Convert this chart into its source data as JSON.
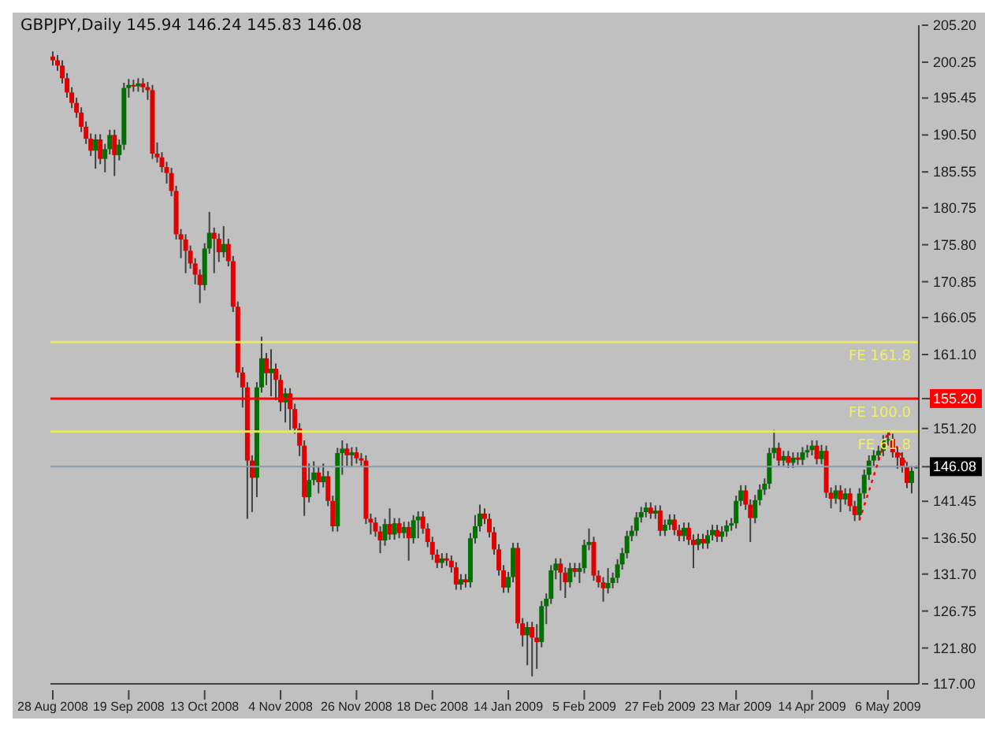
{
  "chart_data": {
    "type": "candlestick",
    "title": "GBPJPY,Daily  145.94 146.24 145.83 146.08",
    "categories": [
      "28 Aug 2008",
      null,
      null,
      null,
      null,
      null,
      null,
      null,
      null,
      null,
      null,
      null,
      null,
      null,
      null,
      null,
      "19 Sep 2008",
      null,
      null,
      null,
      null,
      null,
      null,
      null,
      null,
      null,
      null,
      null,
      null,
      null,
      null,
      null,
      "13 Oct 2008",
      null,
      null,
      null,
      null,
      null,
      null,
      null,
      null,
      null,
      null,
      null,
      null,
      null,
      null,
      null,
      "4 Nov 2008",
      null,
      null,
      null,
      null,
      null,
      null,
      null,
      null,
      null,
      null,
      null,
      null,
      null,
      null,
      null,
      "26 Nov 2008",
      null,
      null,
      null,
      null,
      null,
      null,
      null,
      null,
      null,
      null,
      null,
      null,
      null,
      null,
      null,
      "18 Dec 2008",
      null,
      null,
      null,
      null,
      null,
      null,
      null,
      null,
      null,
      null,
      null,
      null,
      null,
      null,
      null,
      "14 Jan 2009",
      null,
      null,
      null,
      null,
      null,
      null,
      null,
      null,
      null,
      null,
      null,
      null,
      null,
      null,
      null,
      "5 Feb 2009",
      null,
      null,
      null,
      null,
      null,
      null,
      null,
      null,
      null,
      null,
      null,
      null,
      null,
      null,
      null,
      "27 Feb 2009",
      null,
      null,
      null,
      null,
      null,
      null,
      null,
      null,
      null,
      null,
      null,
      null,
      null,
      null,
      null,
      "23 Mar 2009",
      null,
      null,
      null,
      null,
      null,
      null,
      null,
      null,
      null,
      null,
      null,
      null,
      null,
      null,
      null,
      "14 Apr 2009",
      null,
      null,
      null,
      null,
      null,
      null,
      null,
      null,
      null,
      null,
      null,
      null,
      null,
      null,
      null,
      "6 May 2009",
      null,
      null,
      null,
      null,
      null,
      null
    ],
    "ohlc": [
      [
        201.0,
        201.7,
        199.8,
        200.5
      ],
      [
        200.5,
        201.2,
        199.1,
        199.8
      ],
      [
        199.8,
        200.5,
        197.4,
        198.1
      ],
      [
        198.1,
        198.8,
        195.5,
        196.2
      ],
      [
        196.2,
        196.9,
        194.1,
        194.8
      ],
      [
        194.8,
        195.5,
        192.8,
        193.5
      ],
      [
        193.5,
        194.2,
        190.9,
        191.6
      ],
      [
        191.6,
        192.3,
        189.3,
        190.0
      ],
      [
        190.0,
        190.7,
        187.7,
        188.4
      ],
      [
        188.4,
        190.6,
        186.0,
        189.9
      ],
      [
        189.9,
        190.6,
        186.6,
        187.3
      ],
      [
        187.3,
        189.3,
        185.5,
        188.6
      ],
      [
        188.6,
        191.2,
        187.9,
        190.5
      ],
      [
        190.5,
        191.2,
        185.0,
        187.8
      ],
      [
        187.8,
        189.9,
        187.1,
        189.2
      ],
      [
        189.2,
        197.5,
        188.5,
        196.8
      ],
      [
        196.8,
        198.0,
        195.5,
        197.2
      ],
      [
        197.2,
        197.9,
        196.3,
        197.0
      ],
      [
        197.0,
        198.1,
        196.3,
        197.4
      ],
      [
        197.4,
        198.1,
        196.2,
        196.9
      ],
      [
        196.9,
        197.6,
        195.2,
        196.5
      ],
      [
        196.5,
        197.2,
        187.3,
        188.0
      ],
      [
        188.0,
        189.5,
        186.8,
        187.5
      ],
      [
        187.5,
        188.2,
        185.5,
        186.2
      ],
      [
        186.2,
        186.9,
        184.0,
        185.4
      ],
      [
        185.4,
        186.1,
        182.3,
        183.0
      ],
      [
        183.0,
        183.7,
        176.5,
        177.2
      ],
      [
        177.2,
        177.9,
        174.0,
        176.5
      ],
      [
        176.5,
        177.2,
        172.0,
        175.0
      ],
      [
        175.0,
        175.7,
        172.6,
        173.3
      ],
      [
        173.3,
        174.0,
        170.5,
        171.8
      ],
      [
        171.8,
        172.5,
        168.0,
        170.4
      ],
      [
        170.4,
        176.0,
        169.7,
        175.3
      ],
      [
        175.3,
        180.2,
        174.6,
        177.4
      ],
      [
        177.4,
        178.1,
        172.0,
        176.6
      ],
      [
        176.6,
        177.3,
        173.5,
        174.8
      ],
      [
        174.8,
        178.3,
        174.1,
        175.9
      ],
      [
        175.9,
        176.6,
        172.9,
        173.6
      ],
      [
        173.6,
        174.3,
        166.8,
        167.5
      ],
      [
        167.5,
        168.2,
        158.0,
        158.7
      ],
      [
        158.7,
        159.4,
        154.0,
        156.7
      ],
      [
        156.7,
        157.4,
        139.1,
        146.9
      ],
      [
        146.9,
        147.6,
        140.0,
        144.6
      ],
      [
        144.6,
        157.4,
        142.0,
        156.7
      ],
      [
        156.7,
        163.5,
        156.0,
        160.6
      ],
      [
        160.6,
        161.3,
        157.0,
        158.6
      ],
      [
        158.6,
        161.8,
        155.5,
        159.2
      ],
      [
        159.2,
        159.9,
        155.0,
        157.7
      ],
      [
        157.7,
        158.4,
        153.5,
        154.7
      ],
      [
        154.7,
        156.6,
        152.0,
        155.9
      ],
      [
        155.9,
        156.6,
        151.0,
        153.8
      ],
      [
        153.8,
        154.5,
        150.5,
        151.2
      ],
      [
        151.2,
        151.9,
        147.5,
        148.9
      ],
      [
        148.9,
        149.6,
        139.5,
        142.0
      ],
      [
        142.0,
        146.5,
        141.3,
        144.3
      ],
      [
        144.3,
        146.8,
        143.6,
        145.3
      ],
      [
        145.3,
        146.0,
        142.5,
        144.0
      ],
      [
        144.0,
        146.5,
        143.3,
        144.8
      ],
      [
        144.8,
        145.5,
        140.8,
        141.5
      ],
      [
        141.5,
        142.2,
        137.4,
        138.1
      ],
      [
        138.1,
        148.6,
        137.4,
        147.9
      ],
      [
        147.9,
        149.6,
        145.0,
        148.5
      ],
      [
        148.5,
        149.2,
        146.2,
        147.6
      ],
      [
        147.6,
        148.7,
        146.0,
        148.0
      ],
      [
        148.0,
        148.7,
        146.5,
        147.2
      ],
      [
        147.2,
        147.9,
        146.2,
        146.9
      ],
      [
        146.9,
        147.6,
        138.4,
        139.1
      ],
      [
        139.1,
        139.8,
        137.0,
        138.6
      ],
      [
        138.6,
        139.3,
        136.7,
        137.4
      ],
      [
        137.4,
        138.1,
        134.5,
        136.2
      ],
      [
        136.2,
        139.1,
        135.5,
        138.4
      ],
      [
        138.4,
        140.5,
        136.3,
        137.0
      ],
      [
        137.0,
        139.2,
        136.3,
        138.5
      ],
      [
        138.5,
        139.2,
        136.5,
        137.2
      ],
      [
        137.2,
        138.7,
        136.5,
        138.0
      ],
      [
        138.0,
        138.7,
        133.5,
        136.5
      ],
      [
        136.5,
        139.6,
        135.8,
        138.9
      ],
      [
        138.9,
        140.1,
        136.5,
        139.4
      ],
      [
        139.4,
        140.1,
        137.1,
        137.8
      ],
      [
        137.8,
        138.5,
        135.3,
        136.0
      ],
      [
        136.0,
        136.7,
        133.6,
        134.3
      ],
      [
        134.3,
        135.0,
        132.5,
        133.2
      ],
      [
        133.2,
        134.5,
        132.5,
        133.8
      ],
      [
        133.8,
        134.5,
        132.8,
        133.5
      ],
      [
        133.5,
        134.2,
        131.9,
        132.6
      ],
      [
        132.6,
        133.3,
        129.6,
        130.3
      ],
      [
        130.3,
        131.7,
        129.6,
        131.0
      ],
      [
        131.0,
        131.7,
        129.9,
        130.6
      ],
      [
        130.6,
        137.2,
        129.9,
        136.5
      ],
      [
        136.5,
        139.6,
        135.8,
        138.1
      ],
      [
        138.1,
        141.0,
        137.4,
        139.8
      ],
      [
        139.8,
        140.5,
        138.4,
        139.1
      ],
      [
        139.1,
        139.8,
        136.6,
        137.3
      ],
      [
        137.3,
        138.0,
        134.3,
        135.0
      ],
      [
        135.0,
        135.7,
        131.5,
        132.2
      ],
      [
        132.2,
        132.9,
        129.2,
        129.9
      ],
      [
        129.9,
        132.0,
        129.2,
        131.3
      ],
      [
        131.3,
        135.9,
        130.6,
        135.2
      ],
      [
        135.2,
        135.9,
        124.4,
        125.1
      ],
      [
        125.1,
        125.8,
        122.0,
        123.5
      ],
      [
        123.5,
        125.3,
        119.5,
        124.6
      ],
      [
        124.6,
        125.3,
        118.0,
        123.2
      ],
      [
        123.2,
        125.0,
        119.0,
        122.6
      ],
      [
        122.6,
        128.1,
        121.9,
        127.4
      ],
      [
        127.4,
        129.1,
        125.0,
        128.4
      ],
      [
        128.4,
        132.9,
        127.7,
        132.2
      ],
      [
        132.2,
        133.8,
        131.0,
        133.1
      ],
      [
        133.1,
        133.8,
        129.5,
        131.9
      ],
      [
        131.9,
        132.6,
        128.5,
        130.6
      ],
      [
        130.6,
        133.2,
        129.9,
        132.5
      ],
      [
        132.5,
        133.2,
        131.3,
        132.0
      ],
      [
        132.0,
        133.2,
        130.5,
        132.5
      ],
      [
        132.5,
        136.3,
        131.8,
        135.6
      ],
      [
        135.6,
        137.8,
        134.9,
        136.0
      ],
      [
        136.0,
        136.7,
        130.8,
        131.5
      ],
      [
        131.5,
        132.2,
        129.9,
        130.6
      ],
      [
        130.6,
        131.3,
        128.0,
        129.8
      ],
      [
        129.8,
        132.5,
        129.1,
        130.5
      ],
      [
        130.5,
        131.9,
        129.8,
        131.2
      ],
      [
        131.2,
        133.7,
        130.5,
        133.0
      ],
      [
        133.0,
        135.2,
        132.3,
        134.5
      ],
      [
        134.5,
        137.5,
        133.8,
        136.8
      ],
      [
        136.8,
        138.2,
        136.1,
        137.5
      ],
      [
        137.5,
        140.0,
        136.8,
        139.3
      ],
      [
        139.3,
        140.7,
        138.6,
        140.0
      ],
      [
        140.0,
        141.3,
        139.3,
        140.6
      ],
      [
        140.6,
        141.3,
        139.1,
        139.8
      ],
      [
        139.8,
        140.9,
        139.1,
        140.2
      ],
      [
        140.2,
        140.9,
        136.8,
        137.5
      ],
      [
        137.5,
        139.0,
        136.8,
        138.3
      ],
      [
        138.3,
        139.7,
        137.6,
        139.0
      ],
      [
        139.0,
        139.7,
        136.9,
        137.6
      ],
      [
        137.6,
        138.3,
        136.1,
        136.8
      ],
      [
        136.8,
        138.6,
        136.1,
        137.9
      ],
      [
        137.9,
        138.6,
        135.6,
        136.3
      ],
      [
        136.3,
        137.0,
        132.5,
        135.6
      ],
      [
        135.6,
        137.1,
        134.9,
        136.4
      ],
      [
        136.4,
        137.1,
        135.1,
        135.8
      ],
      [
        135.8,
        137.6,
        135.1,
        136.9
      ],
      [
        136.9,
        138.3,
        136.2,
        137.6
      ],
      [
        137.6,
        138.3,
        136.0,
        136.7
      ],
      [
        136.7,
        138.1,
        136.0,
        137.4
      ],
      [
        137.4,
        138.9,
        136.7,
        138.2
      ],
      [
        138.2,
        139.2,
        137.5,
        138.5
      ],
      [
        138.5,
        142.2,
        137.8,
        141.5
      ],
      [
        141.5,
        143.6,
        140.8,
        142.9
      ],
      [
        142.9,
        143.6,
        140.3,
        141.0
      ],
      [
        141.0,
        141.7,
        136.0,
        139.2
      ],
      [
        139.2,
        142.3,
        138.5,
        141.6
      ],
      [
        141.6,
        143.7,
        140.9,
        143.0
      ],
      [
        143.0,
        144.5,
        142.3,
        143.8
      ],
      [
        143.8,
        148.6,
        143.1,
        147.9
      ],
      [
        147.9,
        151.0,
        147.2,
        148.6
      ],
      [
        148.6,
        149.3,
        146.2,
        146.9
      ],
      [
        146.9,
        148.2,
        146.2,
        147.5
      ],
      [
        147.5,
        148.2,
        145.9,
        146.6
      ],
      [
        146.6,
        148.0,
        145.9,
        147.3
      ],
      [
        147.3,
        148.0,
        146.3,
        147.0
      ],
      [
        147.0,
        148.7,
        146.3,
        148.0
      ],
      [
        148.0,
        149.0,
        147.3,
        148.3
      ],
      [
        148.3,
        149.6,
        147.6,
        148.9
      ],
      [
        148.9,
        149.6,
        146.4,
        147.1
      ],
      [
        147.1,
        149.0,
        146.4,
        148.2
      ],
      [
        148.2,
        148.9,
        141.9,
        142.6
      ],
      [
        142.6,
        143.3,
        140.5,
        141.8
      ],
      [
        141.8,
        143.6,
        141.1,
        142.9
      ],
      [
        142.9,
        143.6,
        140.0,
        141.7
      ],
      [
        141.7,
        143.2,
        141.0,
        142.5
      ],
      [
        142.5,
        143.2,
        140.1,
        140.8
      ],
      [
        140.8,
        141.5,
        138.8,
        139.6
      ],
      [
        139.6,
        143.2,
        138.9,
        142.5
      ],
      [
        142.5,
        145.7,
        141.8,
        145.0
      ],
      [
        145.0,
        147.6,
        144.3,
        146.9
      ],
      [
        146.9,
        148.3,
        146.2,
        147.6
      ],
      [
        147.6,
        148.9,
        146.9,
        148.2
      ],
      [
        148.2,
        150.3,
        147.5,
        149.6
      ],
      [
        149.6,
        150.8,
        148.9,
        149.8
      ],
      [
        149.8,
        150.5,
        147.3,
        148.0
      ],
      [
        148.0,
        148.7,
        145.8,
        147.3
      ],
      [
        147.3,
        148.0,
        145.3,
        146.0
      ],
      [
        146.0,
        146.7,
        143.2,
        143.9
      ],
      [
        143.9,
        146.2,
        142.5,
        145.5
      ],
      [
        145.94,
        146.24,
        145.83,
        146.08
      ]
    ],
    "colors": [
      "#e00000",
      "#e00000",
      "#e00000",
      "#e00000",
      "#e00000",
      "#e00000",
      "#e00000",
      "#e00000",
      "#e00000",
      "#007000",
      "#e00000",
      "#007000",
      "#007000",
      "#e00000",
      "#007000",
      "#007000",
      "#007000",
      "#e00000",
      "#007000",
      "#e00000",
      "#e00000",
      "#e00000",
      "#e00000",
      "#e00000",
      "#e00000",
      "#e00000",
      "#e00000",
      "#e00000",
      "#e00000",
      "#e00000",
      "#e00000",
      "#e00000",
      "#007000",
      "#007000",
      "#e00000",
      "#e00000",
      "#007000",
      "#e00000",
      "#e00000",
      "#e00000",
      "#e00000",
      "#e00000",
      "#e00000",
      "#007000",
      "#007000",
      "#e00000",
      "#007000",
      "#e00000",
      "#e00000",
      "#007000",
      "#e00000",
      "#e00000",
      "#e00000",
      "#e00000",
      "#007000",
      "#007000",
      "#e00000",
      "#007000",
      "#e00000",
      "#e00000",
      "#007000",
      "#007000",
      "#e00000",
      "#007000",
      "#e00000",
      "#e00000",
      "#e00000",
      "#e00000",
      "#e00000",
      "#e00000",
      "#007000",
      "#e00000",
      "#007000",
      "#e00000",
      "#007000",
      "#e00000",
      "#007000",
      "#007000",
      "#e00000",
      "#e00000",
      "#e00000",
      "#e00000",
      "#007000",
      "#e00000",
      "#e00000",
      "#e00000",
      "#007000",
      "#e00000",
      "#007000",
      "#007000",
      "#007000",
      "#e00000",
      "#e00000",
      "#e00000",
      "#e00000",
      "#e00000",
      "#007000",
      "#007000",
      "#e00000",
      "#e00000",
      "#007000",
      "#e00000",
      "#e00000",
      "#007000",
      "#007000",
      "#007000",
      "#007000",
      "#e00000",
      "#e00000",
      "#007000",
      "#e00000",
      "#007000",
      "#007000",
      "#007000",
      "#e00000",
      "#e00000",
      "#e00000",
      "#007000",
      "#007000",
      "#007000",
      "#007000",
      "#007000",
      "#007000",
      "#007000",
      "#007000",
      "#007000",
      "#e00000",
      "#007000",
      "#e00000",
      "#007000",
      "#007000",
      "#e00000",
      "#e00000",
      "#007000",
      "#e00000",
      "#e00000",
      "#007000",
      "#e00000",
      "#007000",
      "#007000",
      "#e00000",
      "#007000",
      "#007000",
      "#007000",
      "#007000",
      "#007000",
      "#e00000",
      "#e00000",
      "#007000",
      "#007000",
      "#007000",
      "#007000",
      "#007000",
      "#e00000",
      "#007000",
      "#e00000",
      "#007000",
      "#e00000",
      "#007000",
      "#007000",
      "#007000",
      "#e00000",
      "#007000",
      "#e00000",
      "#e00000",
      "#007000",
      "#e00000",
      "#007000",
      "#e00000",
      "#e00000",
      "#007000",
      "#007000",
      "#007000",
      "#007000",
      "#007000",
      "#007000",
      "#007000",
      "#e00000",
      "#e00000",
      "#e00000",
      "#e00000",
      "#007000",
      "#007000"
    ],
    "series": [
      {
        "type": "line",
        "color": "#ff0000",
        "line_style": "dotted",
        "values": [
          null,
          null,
          null,
          null,
          null,
          null,
          null,
          null,
          null,
          null,
          null,
          null,
          null,
          null,
          null,
          null,
          null,
          null,
          null,
          null,
          null,
          null,
          null,
          null,
          null,
          null,
          null,
          null,
          null,
          null,
          null,
          null,
          null,
          null,
          null,
          null,
          null,
          null,
          null,
          null,
          null,
          null,
          null,
          null,
          null,
          null,
          null,
          null,
          null,
          null,
          null,
          null,
          null,
          null,
          null,
          null,
          null,
          null,
          null,
          null,
          null,
          null,
          null,
          null,
          null,
          null,
          null,
          null,
          null,
          null,
          null,
          null,
          null,
          null,
          null,
          null,
          null,
          null,
          null,
          null,
          null,
          null,
          null,
          null,
          null,
          null,
          null,
          null,
          null,
          null,
          null,
          null,
          null,
          null,
          null,
          null,
          null,
          null,
          null,
          null,
          null,
          null,
          null,
          null,
          null,
          null,
          null,
          null,
          null,
          null,
          null,
          null,
          null,
          null,
          null,
          null,
          null,
          null,
          null,
          null,
          null,
          null,
          null,
          null,
          null,
          null,
          null,
          null,
          null,
          null,
          null,
          null,
          null,
          null,
          null,
          null,
          null,
          null,
          null,
          null,
          null,
          null,
          null,
          null,
          null,
          null,
          null,
          null,
          null,
          null,
          null,
          null,
          null,
          null,
          null,
          null,
          null,
          null,
          null,
          null,
          null,
          null,
          null,
          null,
          null,
          null,
          null,
          null,
          null,
          null,
          138.9,
          null,
          null,
          null,
          null,
          null,
          150.8,
          null,
          null,
          null,
          146.3,
          null,
          null
        ]
      }
    ],
    "ylim": [
      117.0,
      205.2
    ],
    "yticks": [
      {
        "value": 205.2,
        "label": "205.20"
      },
      {
        "value": 200.25,
        "label": "200.25"
      },
      {
        "value": 195.45,
        "label": "195.45"
      },
      {
        "value": 190.5,
        "label": "190.50"
      },
      {
        "value": 185.55,
        "label": "185.55"
      },
      {
        "value": 180.75,
        "label": "180.75"
      },
      {
        "value": 175.8,
        "label": "175.80"
      },
      {
        "value": 170.85,
        "label": "170.85"
      },
      {
        "value": 166.05,
        "label": "166.05"
      },
      {
        "value": 161.1,
        "label": "161.10"
      },
      {
        "value": 155.2,
        "label": "155.20"
      },
      {
        "value": 151.2,
        "label": "151.20"
      },
      {
        "value": 146.08,
        "label": "146.08"
      },
      {
        "value": 141.45,
        "label": "141.45"
      },
      {
        "value": 136.5,
        "label": "136.50"
      },
      {
        "value": 131.7,
        "label": "131.70"
      },
      {
        "value": 126.75,
        "label": "126.75"
      },
      {
        "value": 121.8,
        "label": "121.80"
      },
      {
        "value": 117.0,
        "label": "117.00"
      }
    ],
    "ref_lines": [
      {
        "axis": "y",
        "value": 162.75,
        "label": "FE 161.8",
        "color": "#e8e860"
      },
      {
        "axis": "y",
        "value": 155.2,
        "label": "FE 100.0",
        "color": "#ff0000"
      },
      {
        "axis": "y",
        "value": 150.8,
        "label": "FE 61.8",
        "color": "#e8e860"
      },
      {
        "axis": "y",
        "value": 146.08,
        "label": null,
        "color": "#8c9aa6"
      }
    ]
  }
}
